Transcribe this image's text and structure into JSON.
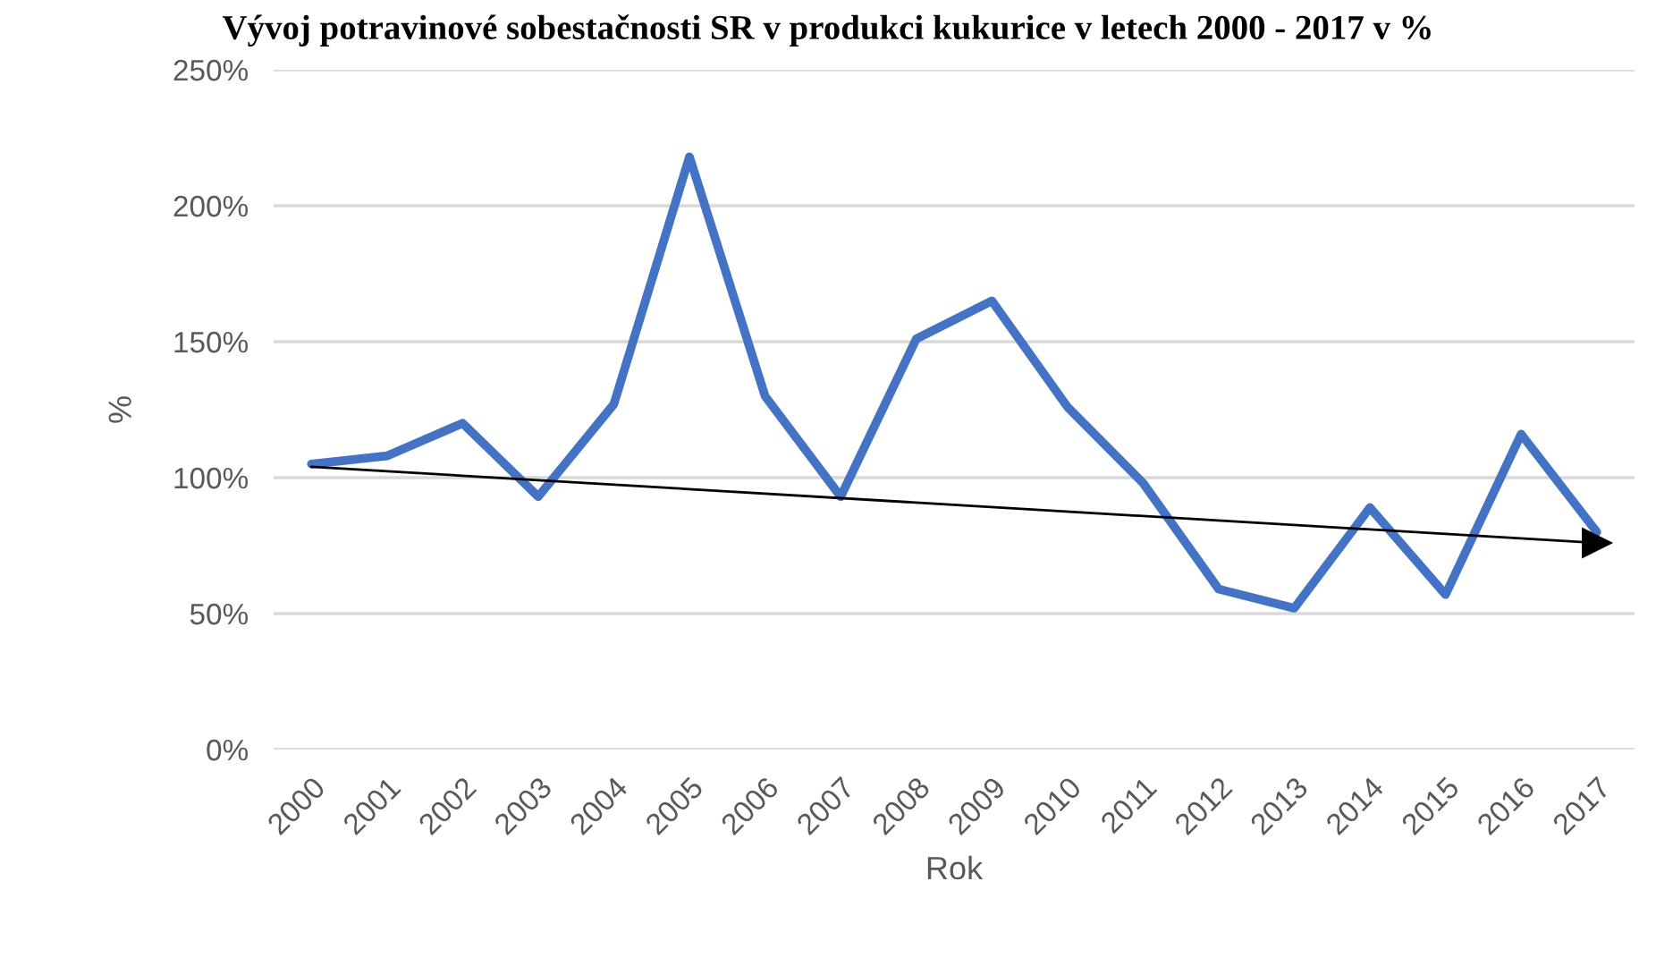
{
  "chart_data": {
    "type": "line",
    "title": "Vývoj potravinové sobestačnosti SR v produkci kukurice v letech 2000 - 2017 v %",
    "xlabel": "Rok",
    "ylabel": "%",
    "categories": [
      "2000",
      "2001",
      "2002",
      "2003",
      "2004",
      "2005",
      "2006",
      "2007",
      "2008",
      "2009",
      "2010",
      "2011",
      "2012",
      "2013",
      "2014",
      "2015",
      "2016",
      "2017"
    ],
    "series": [
      {
        "color": "#4472c4",
        "values": [
          105,
          108,
          120,
          93,
          127,
          218,
          130,
          93,
          151,
          165,
          126,
          98,
          59,
          52,
          89,
          57,
          116,
          80
        ]
      },
      {
        "type": "line",
        "color": "#000000",
        "values": [
          104,
          null,
          null,
          null,
          null,
          null,
          null,
          null,
          null,
          null,
          null,
          null,
          null,
          null,
          null,
          null,
          null,
          76
        ],
        "marker": "triangle"
      }
    ],
    "ylim": [
      0,
      250
    ],
    "yticks": [
      {
        "value": 0,
        "label": "0%"
      },
      {
        "value": 50,
        "label": "50%"
      },
      {
        "value": 100,
        "label": "100%"
      },
      {
        "value": 150,
        "label": "150%"
      },
      {
        "value": 200,
        "label": "200%"
      },
      {
        "value": 250,
        "label": "250%"
      }
    ],
    "grid": "y",
    "legend": false
  }
}
